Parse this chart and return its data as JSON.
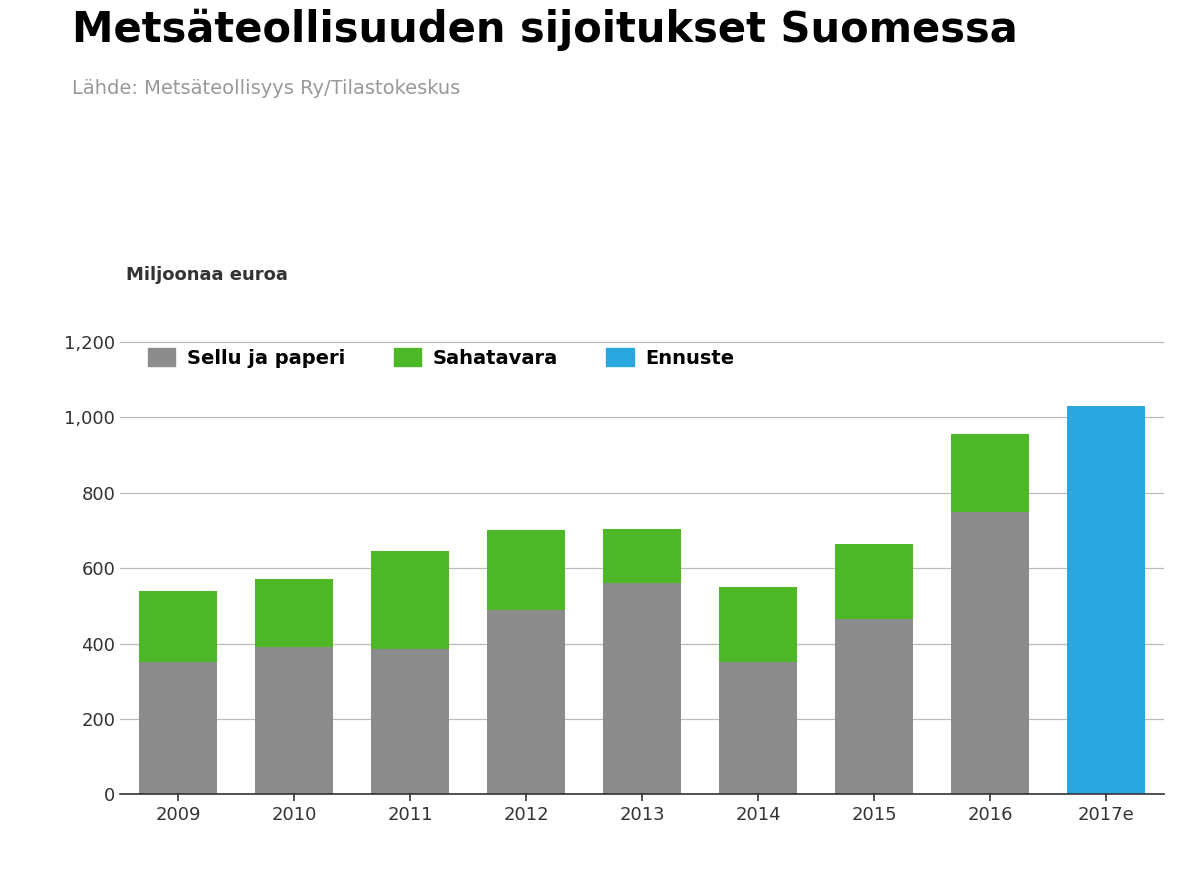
{
  "title": "Metsäteollisuuden sijoitukset Suomessa",
  "subtitle": "Lähde: Metsäteollisyys Ry/Tilastokeskus",
  "ylabel": "Miljoonaa euroa",
  "years": [
    "2009",
    "2010",
    "2011",
    "2012",
    "2013",
    "2014",
    "2015",
    "2016",
    "2017e"
  ],
  "sellu": [
    350,
    390,
    385,
    490,
    560,
    350,
    465,
    750,
    0
  ],
  "sahatavara": [
    190,
    180,
    260,
    210,
    145,
    200,
    200,
    205,
    0
  ],
  "ennuste": [
    0,
    0,
    0,
    0,
    0,
    0,
    0,
    0,
    1030
  ],
  "color_sellu": "#8c8c8c",
  "color_sahatavara": "#4db827",
  "color_ennuste": "#29a8e0",
  "ylim": [
    0,
    1250
  ],
  "yticks": [
    0,
    200,
    400,
    600,
    800,
    1000,
    1200
  ],
  "ytick_labels": [
    "0",
    "200",
    "400",
    "600",
    "800",
    "1,000",
    "1,200"
  ],
  "legend_sellu": "Sellu ja paperi",
  "legend_sahatavara": "Sahatavara",
  "legend_ennuste": "Ennuste",
  "title_fontsize": 30,
  "subtitle_fontsize": 14,
  "ylabel_fontsize": 13,
  "tick_fontsize": 13,
  "legend_fontsize": 14,
  "bar_width": 0.68,
  "background_color": "#ffffff",
  "title_color": "#000000",
  "subtitle_color": "#999999",
  "grid_color": "#bbbbbb",
  "tick_color": "#333333",
  "axis_line_color": "#333333"
}
